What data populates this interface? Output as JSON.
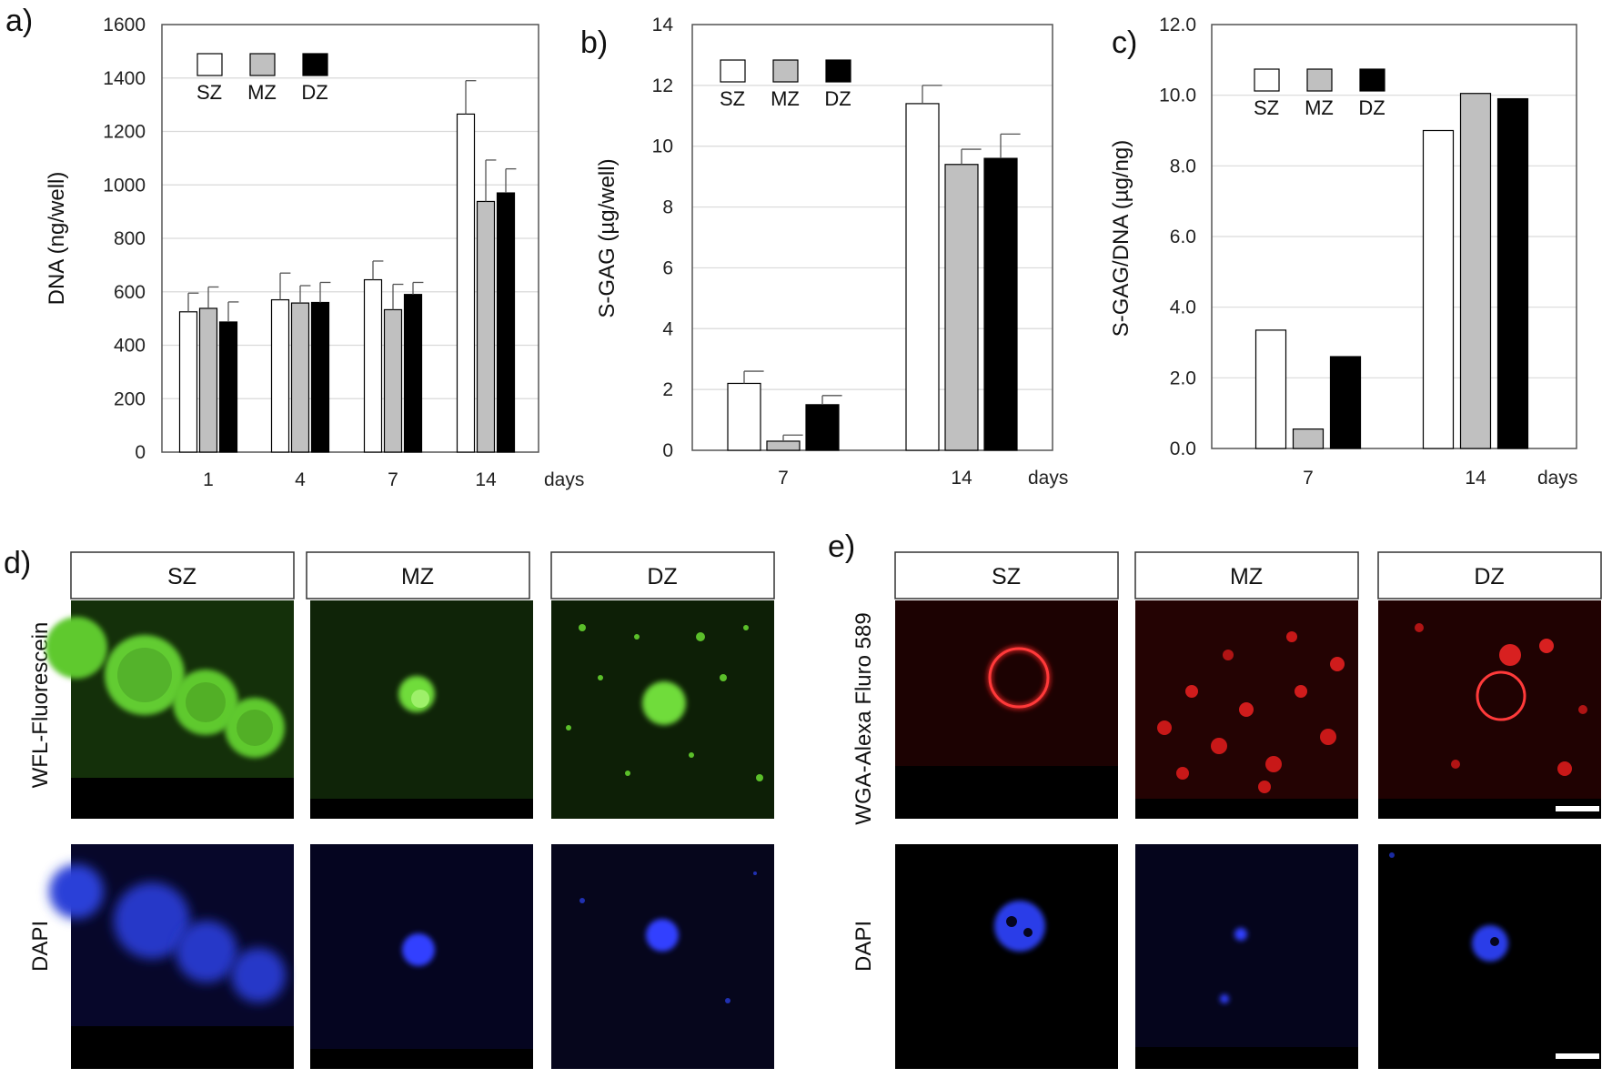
{
  "panels": {
    "a": "a)",
    "b": "b)",
    "c": "c)",
    "d": "d)",
    "e": "e)"
  },
  "colors": {
    "SZ": "#ffffff",
    "MZ": "#c0c0c0",
    "DZ": "#000000",
    "green_stain": "#1e5a10",
    "red_stain": "#5a0a0a",
    "blue_stain": "#0a0a5a"
  },
  "chart_data": [
    {
      "id": "a",
      "type": "bar",
      "ylabel": "DNA  (ng/well)",
      "xlabel": "days",
      "categories": [
        "1",
        "4",
        "7",
        "14"
      ],
      "ylim": [
        0,
        1600
      ],
      "yticks": [
        "0",
        "200",
        "400",
        "600",
        "800",
        "1000",
        "1200",
        "1400",
        "1600"
      ],
      "grid": true,
      "legend": "top-left",
      "series": [
        {
          "name": "SZ",
          "values": [
            525,
            570,
            645,
            1265
          ],
          "errors": [
            70,
            100,
            70,
            125
          ]
        },
        {
          "name": "MZ",
          "values": [
            538,
            558,
            533,
            938
          ],
          "errors": [
            80,
            65,
            95,
            155
          ]
        },
        {
          "name": "DZ",
          "values": [
            487,
            560,
            590,
            970
          ],
          "errors": [
            75,
            75,
            45,
            90
          ]
        }
      ]
    },
    {
      "id": "b",
      "type": "bar",
      "ylabel": "S-GAG (µg/well)",
      "xlabel": "days",
      "categories": [
        "7",
        "14"
      ],
      "ylim": [
        0,
        14
      ],
      "yticks": [
        "0",
        "2",
        "4",
        "6",
        "8",
        "10",
        "12",
        "14"
      ],
      "grid": true,
      "legend": "top-left",
      "series": [
        {
          "name": "SZ",
          "values": [
            2.2,
            11.4
          ],
          "errors": [
            0.4,
            0.6
          ]
        },
        {
          "name": "MZ",
          "values": [
            0.3,
            9.4
          ],
          "errors": [
            0.2,
            0.5
          ]
        },
        {
          "name": "DZ",
          "values": [
            1.5,
            9.6
          ],
          "errors": [
            0.3,
            0.8
          ]
        }
      ]
    },
    {
      "id": "c",
      "type": "bar",
      "ylabel": "S-GAG/DNA (µg/ng)",
      "xlabel": "days",
      "categories": [
        "7",
        "14"
      ],
      "ylim": [
        0,
        12
      ],
      "yticks": [
        "0.0",
        "2.0",
        "4.0",
        "6.0",
        "8.0",
        "10.0",
        "12.0"
      ],
      "grid": true,
      "legend": "top-left",
      "series": [
        {
          "name": "SZ",
          "values": [
            3.35,
            9.0
          ]
        },
        {
          "name": "MZ",
          "values": [
            0.55,
            10.05
          ]
        },
        {
          "name": "DZ",
          "values": [
            2.6,
            9.9
          ]
        }
      ]
    }
  ],
  "micrographs": {
    "d": {
      "zones": [
        "SZ",
        "MZ",
        "DZ"
      ],
      "rows": [
        "WFL-Fluorescein",
        "DAPI"
      ]
    },
    "e": {
      "zones": [
        "SZ",
        "MZ",
        "DZ"
      ],
      "rows": [
        "WGA-Alexa Fluro 589",
        "DAPI"
      ]
    }
  }
}
